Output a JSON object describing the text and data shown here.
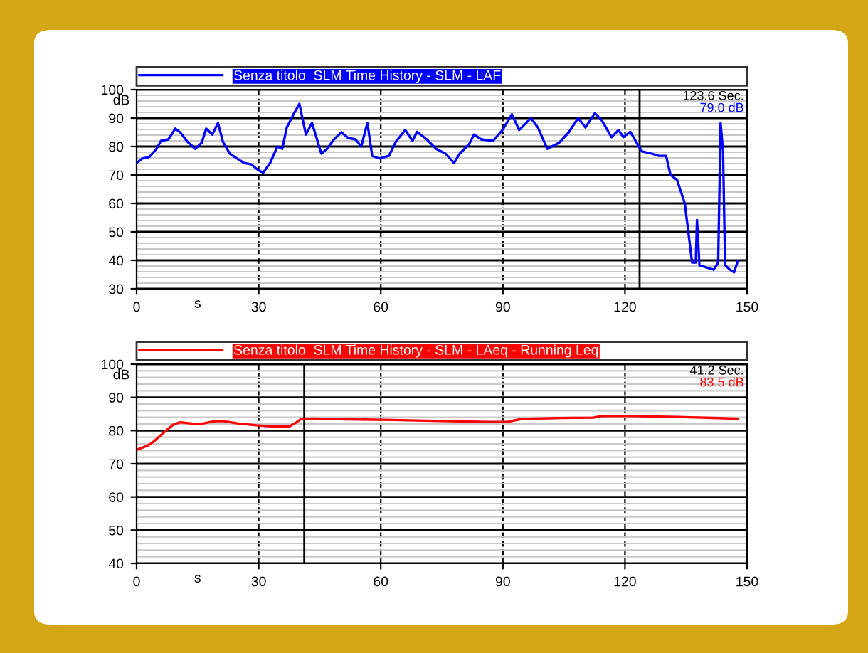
{
  "chart_data": [
    {
      "type": "line",
      "xlabel": "s",
      "ylabel": "dB",
      "xlim": [
        0,
        150
      ],
      "xticks": [
        0,
        30,
        60,
        90,
        120,
        150
      ],
      "ylim": [
        30,
        100
      ],
      "yticks": [
        30,
        40,
        50,
        60,
        70,
        80,
        90,
        100
      ],
      "grid": true,
      "legend": "top",
      "marker": "none",
      "line_style": "solid",
      "annotations": [
        "123.6 Sec.",
        "79.0 dB"
      ],
      "ref_lines": [
        {
          "axis": "x",
          "value": 123.6,
          "color": "#000000",
          "line_style": "solid"
        }
      ],
      "series": [
        {
          "name": "Senza titolo  SLM Time History - SLM - LAF",
          "color": "#0000ff",
          "x": [
            0,
            1.4,
            3.1,
            4.9,
            6,
            7.8,
            9.5,
            10.7,
            12.5,
            14.4,
            16,
            17.1,
            18.6,
            20,
            21.2,
            22.9,
            24.7,
            26.4,
            28.2,
            29.9,
            31.1,
            32.8,
            34.6,
            35.8,
            36.9,
            38.7,
            40,
            41.6,
            43.1,
            44.5,
            45.4,
            46.8,
            48.5,
            50.3,
            52,
            53.8,
            55.2,
            56.7,
            57.9,
            59.6,
            62,
            63.7,
            66,
            67.8,
            68.9,
            71.3,
            73.6,
            75.9,
            78,
            79.4,
            81.7,
            82.9,
            84.7,
            87.6,
            89.9,
            92.2,
            94,
            96.9,
            98.6,
            100.9,
            103.8,
            106.2,
            108.5,
            110.3,
            112.6,
            114.3,
            116.7,
            118.4,
            119.6,
            121.3,
            123.1,
            124.2,
            126.6,
            128.3,
            130.1,
            131.2,
            132.8,
            134.7,
            136.5,
            137.4,
            137.7,
            138.3,
            140,
            141.8,
            142.9,
            143.5,
            144.1,
            144.6,
            145.8,
            146.8,
            147.7
          ],
          "values": [
            74.2,
            75.8,
            76.3,
            79.2,
            82,
            82.5,
            86.3,
            85,
            81.7,
            79.2,
            81.3,
            86.3,
            84.2,
            88.3,
            81.7,
            77.5,
            75.8,
            74.2,
            73.7,
            71.7,
            70.8,
            74.2,
            80,
            79.2,
            86.7,
            91.7,
            95,
            84.2,
            88.3,
            81.7,
            77.5,
            79.2,
            82.5,
            85,
            83,
            82.5,
            80,
            88.3,
            76.7,
            75.8,
            76.7,
            81.7,
            85.8,
            82,
            85.2,
            82.5,
            79.2,
            77.5,
            74.2,
            77.5,
            80.8,
            84.2,
            82.5,
            82,
            85.8,
            91.3,
            85.8,
            90,
            86.7,
            79.2,
            81.3,
            85,
            90,
            86.7,
            91.7,
            89.2,
            83.3,
            85.8,
            83.3,
            85.2,
            80.8,
            78.3,
            77.5,
            76.7,
            76.7,
            70,
            68.3,
            60,
            39.2,
            39.2,
            54.2,
            38.3,
            37.5,
            36.7,
            39.2,
            88.3,
            78.3,
            38.3,
            36.7,
            35.8,
            39.7
          ]
        }
      ]
    },
    {
      "type": "line",
      "xlabel": "s",
      "ylabel": "dB",
      "xlim": [
        0,
        150
      ],
      "xticks": [
        0,
        30,
        60,
        90,
        120,
        150
      ],
      "ylim": [
        40,
        100
      ],
      "yticks": [
        40,
        50,
        60,
        70,
        80,
        90,
        100
      ],
      "grid": true,
      "legend": "top",
      "marker": "none",
      "line_style": "solid",
      "annotations": [
        "41.2 Sec.",
        "83.5 dB"
      ],
      "ref_lines": [
        {
          "axis": "x",
          "value": 41.2,
          "color": "#000000",
          "line_style": "solid"
        }
      ],
      "series": [
        {
          "name": "Senza titolo  SLM Time History - SLM - LAeq - Running Leq",
          "color": "#ff0000",
          "x": [
            0,
            2.6,
            4.3,
            6.6,
            9,
            10.7,
            13,
            15.4,
            18.9,
            21.2,
            24.7,
            29.4,
            34,
            37.6,
            39.3,
            40.4,
            43.3,
            51.5,
            63.1,
            74.8,
            86.5,
            91.1,
            94.6,
            103.9,
            112.1,
            114.4,
            121.4,
            133,
            147.6
          ],
          "values": [
            74.2,
            75.4,
            76.8,
            79.3,
            81.8,
            82.5,
            82.2,
            81.9,
            82.8,
            82.9,
            82.2,
            81.6,
            81.2,
            81.3,
            82.5,
            83.5,
            83.6,
            83.4,
            83.2,
            82.9,
            82.6,
            82.6,
            83.5,
            83.8,
            83.9,
            84.4,
            84.4,
            84.1,
            83.6
          ]
        }
      ]
    }
  ]
}
